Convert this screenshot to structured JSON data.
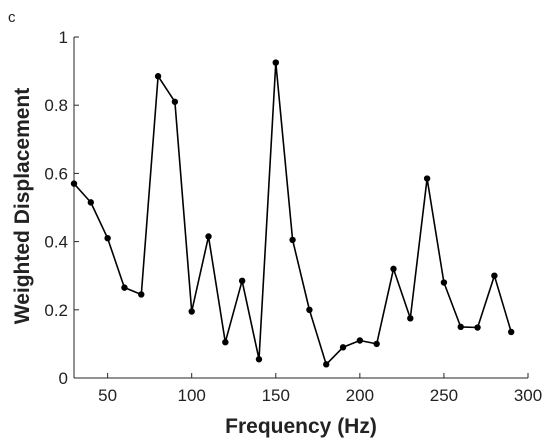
{
  "panel_label": "c",
  "chart_data": {
    "type": "line",
    "title": "",
    "xlabel": "Frequency (Hz)",
    "ylabel": "Weighted Displacement",
    "xlim": [
      30,
      300
    ],
    "ylim": [
      0,
      1
    ],
    "xticks": [
      50,
      100,
      150,
      200,
      250,
      300
    ],
    "yticks": [
      0,
      0.2,
      0.4,
      0.6,
      0.8,
      1
    ],
    "ytick_labels": [
      "0",
      "0.2",
      "0.4",
      "0.6",
      "0.8",
      "1"
    ],
    "grid": false,
    "legend": "none",
    "line_color": "#000000",
    "x": [
      30,
      40,
      50,
      60,
      70,
      80,
      90,
      100,
      110,
      120,
      130,
      140,
      150,
      160,
      170,
      180,
      190,
      200,
      210,
      220,
      230,
      240,
      250,
      260,
      270,
      280,
      290
    ],
    "y": [
      0.57,
      0.515,
      0.41,
      0.265,
      0.245,
      0.885,
      0.81,
      0.195,
      0.415,
      0.105,
      0.285,
      0.055,
      0.925,
      0.405,
      0.2,
      0.04,
      0.09,
      0.11,
      0.1,
      0.32,
      0.175,
      0.585,
      0.28,
      0.15,
      0.148,
      0.3,
      0.135
    ]
  }
}
